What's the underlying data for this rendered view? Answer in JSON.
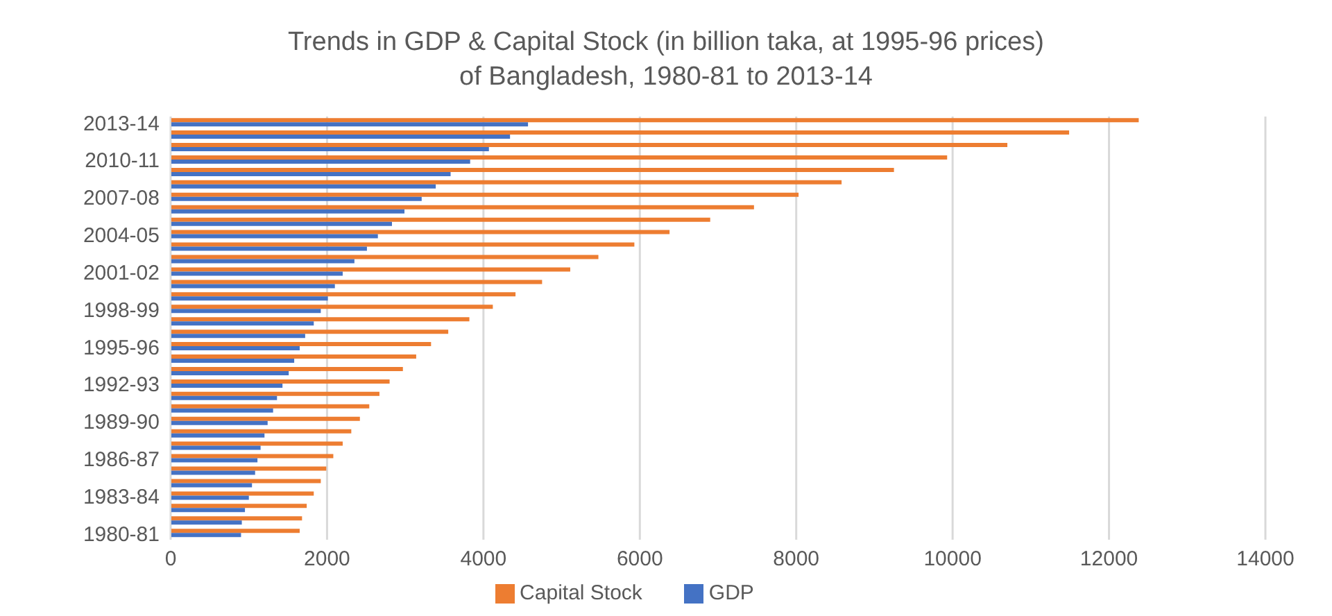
{
  "chart_data": {
    "type": "bar",
    "orientation": "horizontal",
    "title": "Trends in GDP & Capital Stock (in billion taka, at 1995-96 prices) of Bangladesh, 1980-81 to 2013-14",
    "categories": [
      "2013-14",
      null,
      null,
      "2010-11",
      null,
      null,
      "2007-08",
      null,
      null,
      "2004-05",
      null,
      null,
      "2001-02",
      null,
      null,
      "1998-99",
      null,
      null,
      "1995-96",
      null,
      null,
      "1992-93",
      null,
      null,
      "1989-90",
      null,
      null,
      "1986-87",
      null,
      null,
      "1983-84",
      null,
      null,
      "1980-81"
    ],
    "series": [
      {
        "name": "Capital Stock",
        "color": "#ed7d31",
        "values": [
          12380,
          11490,
          10700,
          9930,
          9250,
          8580,
          8030,
          7460,
          6900,
          6380,
          5930,
          5470,
          5110,
          4750,
          4410,
          4120,
          3820,
          3550,
          3330,
          3140,
          2970,
          2800,
          2670,
          2540,
          2420,
          2310,
          2200,
          2080,
          1990,
          1920,
          1830,
          1740,
          1680,
          1650
        ]
      },
      {
        "name": "GDP",
        "color": "#4472c4",
        "values": [
          4570,
          4340,
          4070,
          3830,
          3580,
          3390,
          3210,
          2990,
          2830,
          2650,
          2510,
          2350,
          2200,
          2100,
          2010,
          1920,
          1830,
          1720,
          1650,
          1580,
          1510,
          1430,
          1360,
          1310,
          1240,
          1200,
          1150,
          1110,
          1080,
          1040,
          1000,
          950,
          910,
          900
        ]
      }
    ],
    "xlim": [
      0,
      14000
    ],
    "xticks": [
      0,
      2000,
      4000,
      6000,
      8000,
      10000,
      12000,
      14000
    ],
    "grid": "x",
    "legend": "bottom"
  }
}
